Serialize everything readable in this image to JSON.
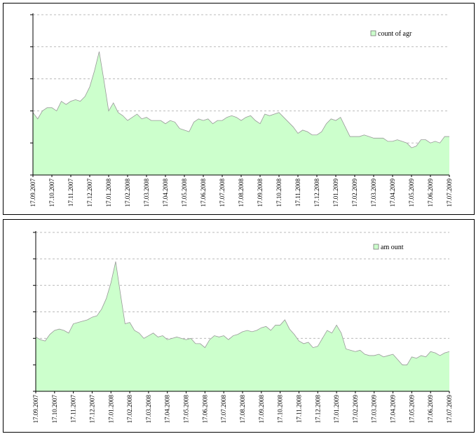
{
  "chart_data": [
    {
      "type": "area",
      "legend": "count of agr",
      "legend_position": "top-right",
      "grid": true,
      "ylim": [
        0,
        5
      ],
      "colors": {
        "fill": "#ccffcc",
        "line": "#999999",
        "grid": "#bbbbbb"
      },
      "x_ticks": [
        "17.09.2007",
        "17.10.2007",
        "17.11.2007",
        "17.12.2007",
        "17.01.2008",
        "17.02.2008",
        "17.03.2008",
        "17.04.2008",
        "17.05.2008",
        "17.06.2008",
        "17.07.2008",
        "17.08.2008",
        "17.09.2008",
        "17.10.2008",
        "17.11.2008",
        "17.12.2008",
        "17.01.2009",
        "17.02.2009",
        "17.03.2009",
        "17.04.2009",
        "17.05.2009",
        "17.06.2009",
        "17.07.2009"
      ],
      "values": [
        1.95,
        1.75,
        2.0,
        2.1,
        2.1,
        2.0,
        2.3,
        2.2,
        2.3,
        2.35,
        2.3,
        2.45,
        2.75,
        3.25,
        3.85,
        2.95,
        2.0,
        2.25,
        1.95,
        1.85,
        1.7,
        1.8,
        1.9,
        1.75,
        1.8,
        1.7,
        1.7,
        1.7,
        1.6,
        1.7,
        1.65,
        1.45,
        1.4,
        1.35,
        1.65,
        1.75,
        1.7,
        1.75,
        1.6,
        1.7,
        1.7,
        1.8,
        1.85,
        1.8,
        1.7,
        1.8,
        1.85,
        1.7,
        1.6,
        1.9,
        1.85,
        1.9,
        1.95,
        1.8,
        1.65,
        1.5,
        1.3,
        1.4,
        1.35,
        1.25,
        1.25,
        1.35,
        1.6,
        1.75,
        1.7,
        1.8,
        1.5,
        1.2,
        1.2,
        1.2,
        1.25,
        1.2,
        1.15,
        1.15,
        1.15,
        1.05,
        1.05,
        1.1,
        1.05,
        1.0,
        0.85,
        0.9,
        1.1,
        1.1,
        1.0,
        1.05,
        1.0,
        1.2,
        1.2
      ]
    },
    {
      "type": "area",
      "legend": "am ount",
      "legend_position": "top-right",
      "grid": true,
      "ylim": [
        0,
        6
      ],
      "colors": {
        "fill": "#ccffcc",
        "line": "#999999",
        "grid": "#bbbbbb"
      },
      "x_ticks": [
        "17.09.2007",
        "17.10.2007",
        "17.11.2007",
        "17.12.2007",
        "17.01.2008",
        "17.02.2008",
        "17.03.2008",
        "17.04.2008",
        "17.05.2008",
        "17.06.2008",
        "17.07.2008",
        "17.08.2008",
        "17.09.2008",
        "17.10.2008",
        "17.11.2008",
        "17.12.2008",
        "17.01.2009",
        "17.02.2009",
        "17.03.2009",
        "17.04.2009",
        "17.05.2009",
        "17.06.2009",
        "17.07.2009"
      ],
      "values": [
        2.05,
        1.95,
        1.9,
        2.15,
        2.3,
        2.35,
        2.3,
        2.2,
        2.55,
        2.6,
        2.65,
        2.7,
        2.8,
        2.85,
        3.1,
        3.5,
        4.1,
        4.9,
        3.7,
        2.55,
        2.6,
        2.3,
        2.2,
        2.0,
        2.1,
        2.2,
        2.05,
        2.1,
        1.95,
        2.0,
        2.05,
        2.0,
        1.95,
        2.0,
        1.8,
        1.8,
        1.65,
        1.95,
        2.1,
        2.05,
        2.1,
        1.95,
        2.1,
        2.15,
        2.25,
        2.3,
        2.25,
        2.3,
        2.4,
        2.45,
        2.3,
        2.5,
        2.5,
        2.7,
        2.35,
        2.15,
        1.9,
        1.8,
        1.85,
        1.65,
        1.7,
        2.0,
        2.3,
        2.2,
        2.5,
        2.2,
        1.6,
        1.55,
        1.5,
        1.55,
        1.4,
        1.35,
        1.35,
        1.4,
        1.3,
        1.35,
        1.4,
        1.2,
        1.0,
        1.0,
        1.3,
        1.25,
        1.35,
        1.3,
        1.5,
        1.45,
        1.35,
        1.45,
        1.5
      ]
    }
  ]
}
